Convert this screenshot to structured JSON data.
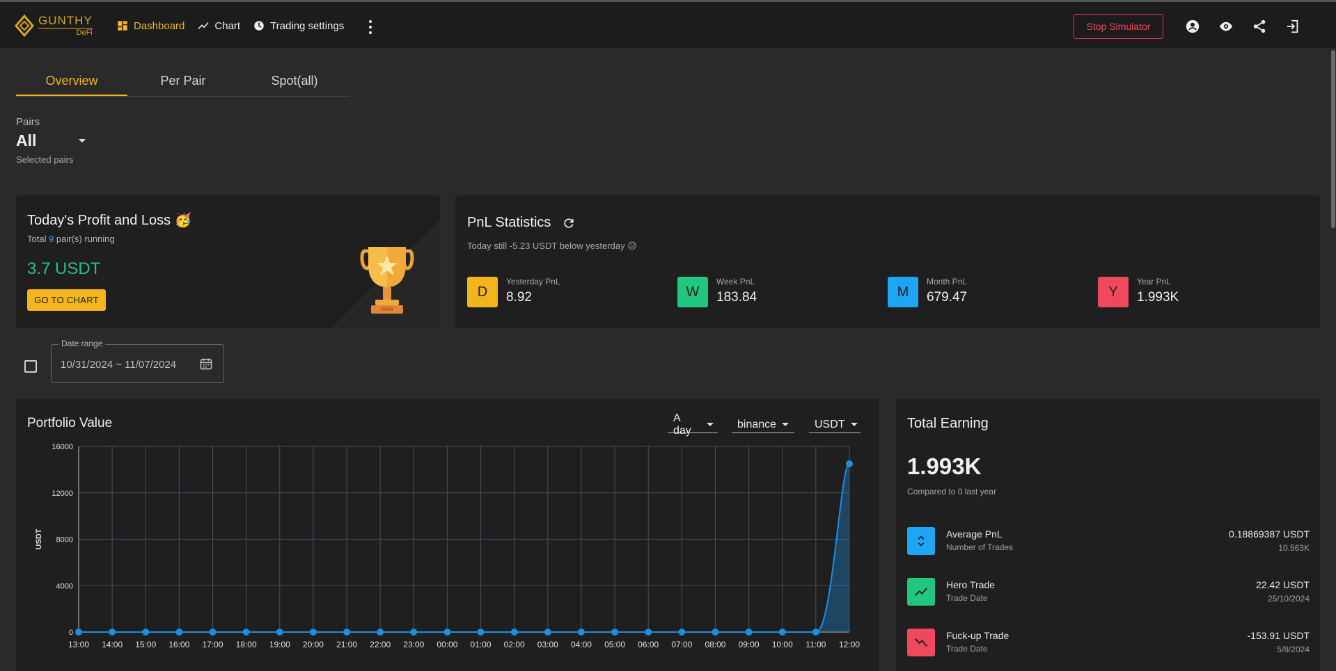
{
  "brand": {
    "line1": "GUNTHY",
    "line2": "DeFi"
  },
  "nav": [
    {
      "label": "Dashboard",
      "icon": "dashboard-icon",
      "active": true
    },
    {
      "label": "Chart",
      "icon": "trending-up-icon",
      "active": false
    },
    {
      "label": "Trading settings",
      "icon": "settings-icon",
      "active": false
    }
  ],
  "toolbar": {
    "stop_label": "Stop Simulator"
  },
  "tabs": [
    {
      "label": "Overview",
      "active": true
    },
    {
      "label": "Per Pair",
      "active": false
    },
    {
      "label": "Spot(all)",
      "active": false
    }
  ],
  "pairs": {
    "label": "Pairs",
    "value": "All",
    "helper": "Selected pairs"
  },
  "profit": {
    "title": "Today's Profit and Loss 🥳",
    "sub_prefix": "Total ",
    "sub_count": "9",
    "sub_suffix": " pair(s) running",
    "amount": "3.7 USDT",
    "button": "GO TO CHART"
  },
  "pnl": {
    "title": "PnL Statistics",
    "subtitle": "Today still -5.23 USDT below yesterday 😥",
    "stats": [
      {
        "letter": "D",
        "label": "Yesterday PnL",
        "value": "8.92",
        "color": "#f2b51c"
      },
      {
        "letter": "W",
        "label": "Week PnL",
        "value": "183.84",
        "color": "#21c77e"
      },
      {
        "letter": "M",
        "label": "Month PnL",
        "value": "679.47",
        "color": "#1ca6f5"
      },
      {
        "letter": "Y",
        "label": "Year PnL",
        "value": "1.993K",
        "color": "#f0485c"
      }
    ]
  },
  "daterange": {
    "legend": "Date range",
    "value": "10/31/2024 ~ 11/07/2024"
  },
  "portfolio": {
    "title": "Portfolio Value",
    "period": "A day",
    "exchange": "binance",
    "currency": "USDT"
  },
  "chart_data": {
    "type": "area",
    "title": "",
    "xlabel": "",
    "ylabel": "USDT",
    "x": [
      "13:00",
      "14:00",
      "15:00",
      "16:00",
      "17:00",
      "18:00",
      "19:00",
      "20:00",
      "21:00",
      "22:00",
      "23:00",
      "00:00",
      "01:00",
      "02:00",
      "03:00",
      "04:00",
      "05:00",
      "06:00",
      "07:00",
      "08:00",
      "09:00",
      "10:00",
      "11:00",
      "12:00"
    ],
    "series": [
      {
        "values": [
          0,
          0,
          0,
          0,
          0,
          0,
          0,
          0,
          0,
          0,
          0,
          0,
          0,
          0,
          0,
          0,
          0,
          0,
          0,
          0,
          0,
          0,
          0,
          14500
        ]
      }
    ],
    "yticks": [
      "0",
      "4000",
      "8000",
      "12000",
      "16000"
    ],
    "ylim": [
      0,
      16000
    ],
    "grid": true,
    "color": "#1c8fe0"
  },
  "earning": {
    "title": "Total Earning",
    "value": "1.993K",
    "compare": "Compared to 0 last year",
    "rows": [
      {
        "title": "Average PnL",
        "sub": "Number of Trades",
        "value": "0.18869387 USDT",
        "sub_value": "10.563K",
        "color": "#1ca6f5",
        "icon": "unfold-icon"
      },
      {
        "title": "Hero Trade",
        "sub": "Trade Date",
        "value": "22.42 USDT",
        "sub_value": "25/10/2024",
        "color": "#21c77e",
        "icon": "trending-up-icon"
      },
      {
        "title": "Fuck-up Trade",
        "sub": "Trade Date",
        "value": "-153.91 USDT",
        "sub_value": "5/8/2024",
        "color": "#f0485c",
        "icon": "trending-down-icon"
      }
    ]
  }
}
